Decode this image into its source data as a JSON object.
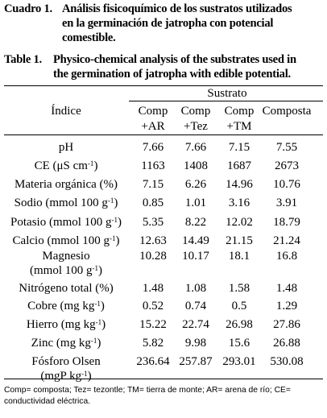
{
  "caption_es": {
    "label": "Cuadro 1.",
    "line1": "Análisis fisicoquímico de los sustratos utilizados",
    "line2": "en la germinación de jatropha con potencial",
    "line3": "comestible."
  },
  "caption_en": {
    "label": "Table 1.",
    "line1": "Physico-chemical analysis of the substrates used in",
    "line2": "the germination of jatropha with edible potential."
  },
  "header": {
    "index": "Índice",
    "group": "Sustrato",
    "columns": [
      {
        "l1": "Comp",
        "l2": "+AR"
      },
      {
        "l1": "Comp",
        "l2": "+Tez"
      },
      {
        "l1": "Comp",
        "l2": "+TM"
      },
      {
        "l1": "Composta",
        "l2": ""
      }
    ]
  },
  "rows": [
    {
      "label": "pH",
      "values": [
        "7.66",
        "7.66",
        "7.15",
        "7.55"
      ]
    },
    {
      "label": "CE (μS cm",
      "sup": "-1",
      "suffix": ")",
      "values": [
        "1163",
        "1408",
        "1687",
        "2673"
      ]
    },
    {
      "label": "Materia orgánica (%)",
      "values": [
        "7.15",
        "6.26",
        "14.96",
        "10.76"
      ]
    },
    {
      "label": "Sodio (mmol 100 g",
      "sup": "-1",
      "suffix": ")",
      "values": [
        "0.85",
        "1.01",
        "3.16",
        "3.91"
      ]
    },
    {
      "label": "Potasio (mmol 100 g",
      "sup": "-1",
      "suffix": ")",
      "values": [
        "5.35",
        "8.22",
        "12.02",
        "18.79"
      ]
    },
    {
      "label": "Calcio (mmol 100 g",
      "sup": "-1",
      "suffix": ")",
      "values": [
        "12.63",
        "14.49",
        "21.15",
        "21.24"
      ]
    },
    {
      "label": "Magnesio",
      "label2": "(mmol 100 g",
      "sup": "-1",
      "suffix": ")",
      "values": [
        "10.28",
        "10.17",
        "18.1",
        "16.8"
      ]
    },
    {
      "label": "Nitrógeno total (%)",
      "values": [
        "1.48",
        "1.08",
        "1.58",
        "1.48"
      ]
    },
    {
      "label": "Cobre (mg kg",
      "sup": "-1",
      "suffix": ")",
      "values": [
        "0.52",
        "0.74",
        "0.5",
        "1.29"
      ]
    },
    {
      "label": "Hierro (mg kg",
      "sup": "-1",
      "suffix": ")",
      "values": [
        "15.22",
        "22.74",
        "26.98",
        "27.86"
      ]
    },
    {
      "label": "Zinc (mg kg",
      "sup": "-1",
      "suffix": ")",
      "values": [
        "5.82",
        "9.98",
        "15.6",
        "26.88"
      ]
    },
    {
      "label": "Fósforo Olsen",
      "label2": "(mgP kg",
      "sup": "-1",
      "suffix": ")",
      "values": [
        "236.64",
        "257.87",
        "293.01",
        "530.08"
      ]
    }
  ],
  "footnote": {
    "line1": "Comp= composta; Tez= tezontle; TM= tierra de monte; AR= arena de río; CE=",
    "line2": "conductividad eléctrica."
  }
}
